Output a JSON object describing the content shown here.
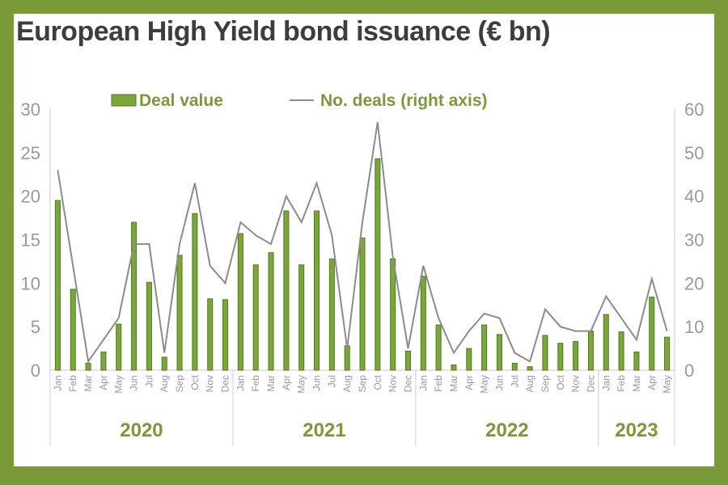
{
  "title": "European High Yield bond issuance (€ bn)",
  "colors": {
    "frame": "#7a9a3a",
    "bar": "#7aa63a",
    "bar_stroke": "#4f7a1e",
    "line": "#8c8c8c",
    "axis_text": "#9a9a9a",
    "legend_text": "#7a9a3a",
    "year_text": "#7a9a3a",
    "title_text": "#3d3d3d"
  },
  "chart_data": {
    "type": "bar",
    "categories": [
      "Jan",
      "Feb",
      "Mar",
      "Apr",
      "May",
      "Jun",
      "Jul",
      "Aug",
      "Sep",
      "Oct",
      "Nov",
      "Dec",
      "Jan",
      "Feb",
      "Mar",
      "Apr",
      "May",
      "Jun",
      "Jul",
      "Aug",
      "Sep",
      "Oct",
      "Nov",
      "Dec",
      "Jan",
      "Feb",
      "Mar",
      "Apr",
      "May",
      "Jun",
      "Jul",
      "Aug",
      "Sep",
      "Oct",
      "Nov",
      "Dec",
      "Jan",
      "Feb",
      "Mar",
      "Apr",
      "May"
    ],
    "years": [
      {
        "label": "2020",
        "start": 0,
        "count": 12
      },
      {
        "label": "2021",
        "start": 12,
        "count": 12
      },
      {
        "label": "2022",
        "start": 24,
        "count": 12
      },
      {
        "label": "2023",
        "start": 36,
        "count": 5
      }
    ],
    "series": [
      {
        "name": "Deal value",
        "type": "bar",
        "axis": "left",
        "values": [
          19.5,
          9.3,
          0.8,
          2.1,
          5.3,
          17.0,
          10.1,
          1.5,
          13.2,
          18.0,
          8.2,
          8.1,
          15.7,
          12.1,
          13.5,
          18.3,
          12.1,
          18.3,
          12.8,
          2.8,
          15.2,
          24.3,
          12.8,
          2.2,
          10.8,
          5.2,
          0.6,
          2.5,
          5.2,
          4.1,
          0.8,
          0.4,
          4.0,
          3.1,
          3.3,
          4.5,
          6.4,
          4.4,
          2.1,
          8.4,
          3.8
        ]
      },
      {
        "name": "No. deals (right axis)",
        "type": "line",
        "axis": "right",
        "values": [
          46,
          24,
          2,
          7,
          12,
          29,
          29,
          4,
          29,
          43,
          24,
          20,
          34,
          31,
          29,
          40,
          34,
          43,
          31,
          5,
          34,
          57,
          26,
          5,
          24,
          12,
          4,
          9,
          13,
          12,
          4,
          2,
          14,
          10,
          9,
          9,
          17,
          12,
          7,
          21,
          9
        ]
      }
    ],
    "ylim_left": [
      0,
      30
    ],
    "yticks_left": [
      0,
      5,
      10,
      15,
      20,
      25,
      30
    ],
    "ylim_right": [
      0,
      60
    ],
    "yticks_right": [
      0,
      10,
      20,
      30,
      40,
      50,
      60
    ],
    "legend_position": "top"
  }
}
